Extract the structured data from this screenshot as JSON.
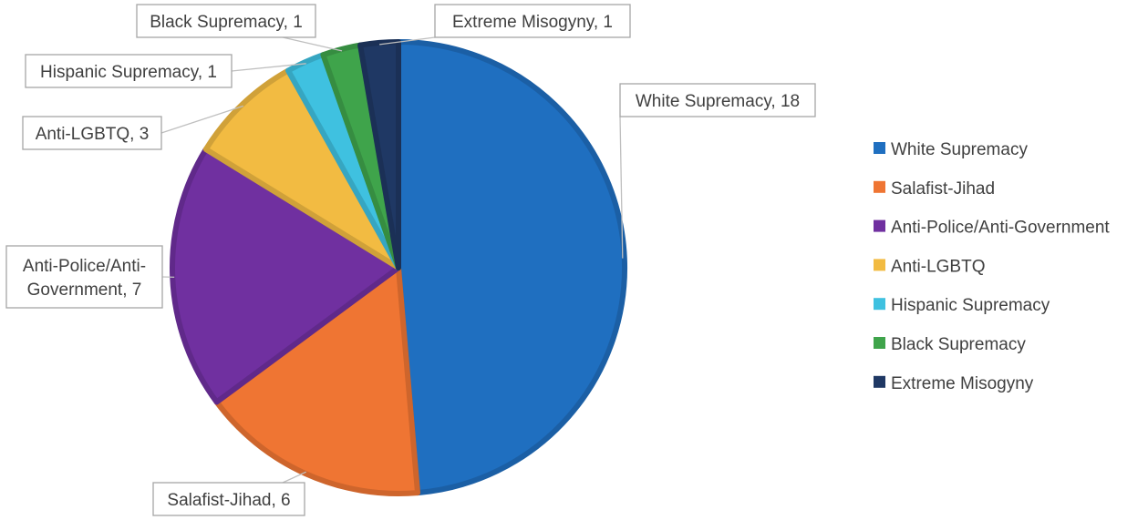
{
  "chart_data": {
    "type": "pie",
    "title": "",
    "slices": [
      {
        "label": "White Supremacy",
        "value": 18,
        "color": "#1f6fc0"
      },
      {
        "label": "Salafist-Jihad",
        "value": 6,
        "color": "#ef7533"
      },
      {
        "label": "Anti-Police/Anti-Government",
        "value": 7,
        "color": "#7030a0"
      },
      {
        "label": "Anti-LGBTQ",
        "value": 3,
        "color": "#f2bb42"
      },
      {
        "label": "Hispanic Supremacy",
        "value": 1,
        "color": "#3fc1e0"
      },
      {
        "label": "Black Supremacy",
        "value": 1,
        "color": "#3fa44b"
      },
      {
        "label": "Extreme Misogyny",
        "value": 1,
        "color": "#1f3864"
      }
    ],
    "data_labels": [
      "White Supremacy, 18",
      "Salafist-Jihad, 6",
      "Anti-Police/Anti-|Government, 7",
      "Anti-LGBTQ, 3",
      "Hispanic Supremacy, 1",
      "Black Supremacy, 1",
      "Extreme Misogyny, 1"
    ],
    "legend": {
      "position": "right",
      "entries": [
        "White Supremacy",
        "Salafist-Jihad",
        "Anti-Police/Anti-Government",
        "Anti-LGBTQ",
        "Hispanic Supremacy",
        "Black Supremacy",
        "Extreme Misogyny"
      ]
    }
  }
}
